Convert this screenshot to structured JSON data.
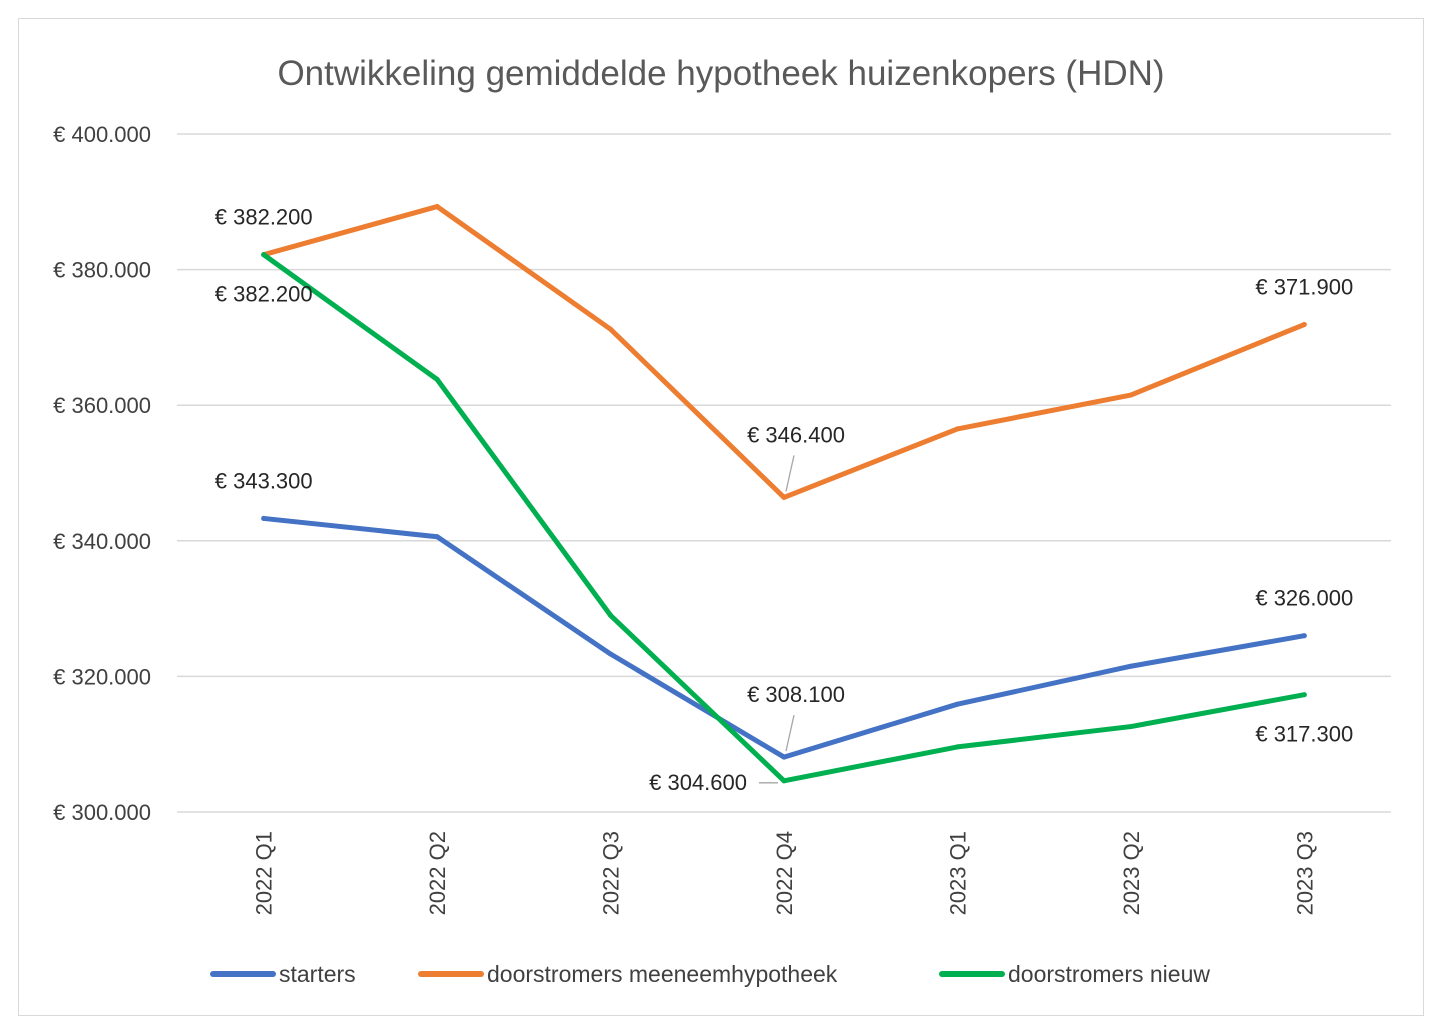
{
  "chart_data": {
    "type": "line",
    "title": "Ontwikkeling gemiddelde hypotheek huizenkopers (HDN)",
    "xlabel": "",
    "ylabel": "",
    "categories": [
      "2022 Q1",
      "2022 Q2",
      "2022 Q3",
      "2022 Q4",
      "2023 Q1",
      "2023 Q2",
      "2023 Q3"
    ],
    "ylim": [
      300000,
      400000
    ],
    "y_ticks": [
      300000,
      320000,
      340000,
      360000,
      380000,
      400000
    ],
    "y_tick_labels": [
      "€ 300.000",
      "€ 320.000",
      "€ 340.000",
      "€ 360.000",
      "€ 380.000",
      "€ 400.000"
    ],
    "grid": "horizontal",
    "legend_position": "bottom",
    "series": [
      {
        "name": "starters",
        "color": "#4472c4",
        "values": [
          343300,
          340600,
          323300,
          308100,
          315900,
          321500,
          326000
        ],
        "data_labels": [
          {
            "index": 0,
            "text": "€ 343.300",
            "pos": "above"
          },
          {
            "index": 3,
            "text": "€ 308.100",
            "pos": "above"
          },
          {
            "index": 6,
            "text": "€ 326.000",
            "pos": "above"
          }
        ]
      },
      {
        "name": "doorstromers meeneemhypotheek",
        "color": "#ed7d31",
        "values": [
          382200,
          389300,
          371200,
          346400,
          356500,
          361500,
          371900
        ],
        "data_labels": [
          {
            "index": 0,
            "text": "€ 382.200",
            "pos": "above"
          },
          {
            "index": 3,
            "text": "€ 346.400",
            "pos": "above"
          },
          {
            "index": 6,
            "text": "€ 371.900",
            "pos": "above"
          }
        ]
      },
      {
        "name": "doorstromers nieuw",
        "color": "#00b050",
        "values": [
          382200,
          363800,
          329000,
          304600,
          309600,
          312600,
          317300
        ],
        "data_labels": [
          {
            "index": 0,
            "text": "€ 382.200",
            "pos": "below"
          },
          {
            "index": 3,
            "text": "€ 304.600",
            "pos": "left"
          },
          {
            "index": 6,
            "text": "€ 317.300",
            "pos": "below"
          }
        ]
      }
    ]
  },
  "colors": {
    "grid": "#d9d9d9",
    "leader": "#a6a6a6"
  }
}
